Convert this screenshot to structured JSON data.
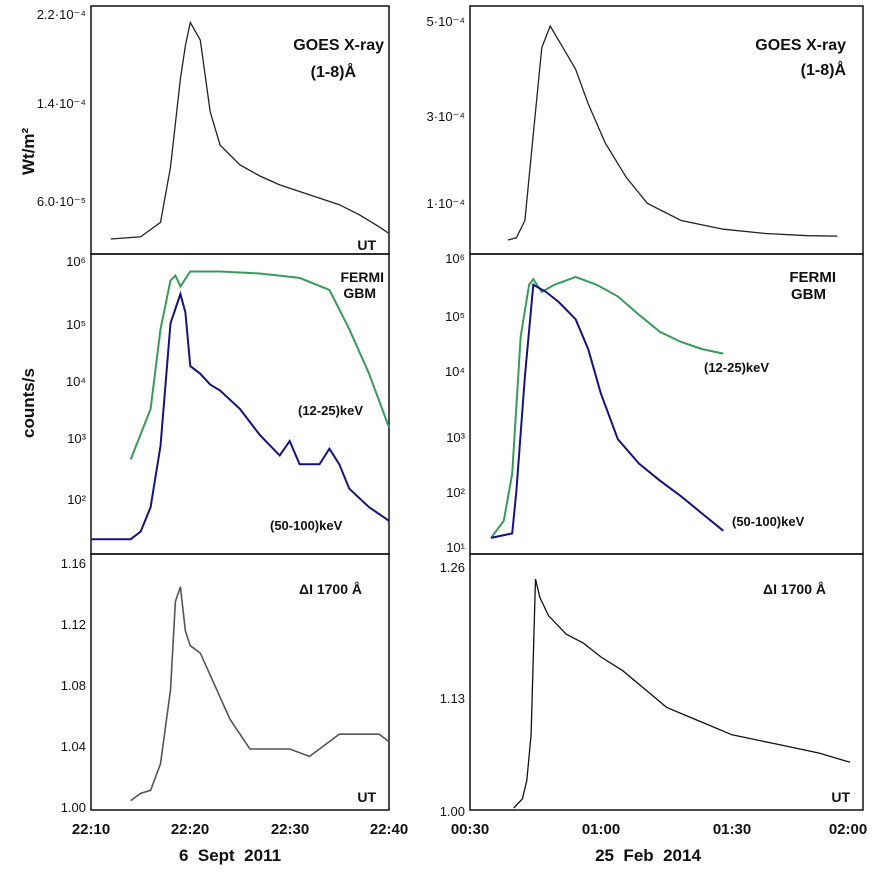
{
  "columns": [
    {
      "date_label": "6  Sept  2011",
      "x_ticks": [
        "22:10",
        "22:20",
        "22:30",
        "22:40"
      ],
      "goes": {
        "title_line1": "GOES X-ray",
        "title_line2": "(1-8)Å",
        "ut": "UT",
        "y_label": "Wt/m²",
        "y_ticks": [
          "2.2·10⁻⁴",
          "1.4·10⁻⁴",
          "6.0·10⁻⁵"
        ]
      },
      "fermi": {
        "title_line1": "FERMI",
        "title_line2": "GBM",
        "y_label": "counts/s",
        "y_ticks": [
          "10⁶",
          "10⁵",
          "10⁴",
          "10³",
          "10²"
        ],
        "label_12_25": "(12-25)keV",
        "label_50_100": "(50-100)keV"
      },
      "aia": {
        "title": "ΔI 1700 Å",
        "ut": "UT",
        "y_ticks": [
          "1.16",
          "1.12",
          "1.08",
          "1.04",
          "1.00"
        ]
      }
    },
    {
      "date_label": "25  Feb  2014",
      "x_ticks": [
        "00:30",
        "01:00",
        "01:30",
        "02:00"
      ],
      "goes": {
        "title_line1": "GOES X-ray",
        "title_line2": "(1-8)Å",
        "y_ticks": [
          "5·10⁻⁴",
          "3·10⁻⁴",
          "1·10⁻⁴"
        ]
      },
      "fermi": {
        "title_line1": "FERMI",
        "title_line2": "GBM",
        "y_ticks": [
          "10⁶",
          "10⁵",
          "10⁴",
          "10³",
          "10²",
          "10¹"
        ],
        "label_12_25": "(12-25)keV",
        "label_50_100": "(50-100)keV"
      },
      "aia": {
        "title": "ΔI 1700 Å",
        "ut": "UT",
        "y_ticks": [
          "1.26",
          "1.13",
          "1.00"
        ]
      }
    }
  ],
  "chart_data": [
    {
      "type": "line",
      "title": "GOES X-ray (1-8)Å",
      "date": "6 Sept 2011",
      "ylabel": "Wt/m²",
      "xlim": [
        "22:10",
        "22:40"
      ],
      "ylim": [
        2.5e-05,
        0.000225
      ],
      "series": [
        {
          "name": "GOES X-ray (1-8)Å",
          "color": "#222222",
          "x": [
            "22:12",
            "22:15",
            "22:17",
            "22:18",
            "22:19",
            "22:19.5",
            "22:20",
            "22:21",
            "22:22",
            "22:23",
            "22:25",
            "22:27",
            "22:29",
            "22:31",
            "22:33",
            "22:35",
            "22:37",
            "22:39",
            "22:40"
          ],
          "values": [
            2.5e-05,
            2.7e-05,
            4e-05,
            9e-05,
            0.00017,
            0.0002,
            0.000221,
            0.000205,
            0.00014,
            0.00011,
            9.2e-05,
            8.2e-05,
            7.4e-05,
            6.8e-05,
            6.2e-05,
            5.6e-05,
            4.7e-05,
            3.6e-05,
            3e-05
          ]
        }
      ]
    },
    {
      "type": "line",
      "title": "FERMI GBM",
      "date": "6 Sept 2011",
      "ylabel": "counts/s",
      "yscale": "log",
      "xlim": [
        "22:10",
        "22:40"
      ],
      "ylim": [
        20,
        1000000
      ],
      "series": [
        {
          "name": "(12-25)keV",
          "color": "#3a9a5a",
          "x": [
            "22:14",
            "22:16",
            "22:17",
            "22:18",
            "22:18.5",
            "22:19",
            "22:20",
            "22:23",
            "22:27",
            "22:31",
            "22:34",
            "22:36",
            "22:38",
            "22:40"
          ],
          "values": [
            600,
            4000,
            80000,
            500000,
            600000,
            400000,
            700000,
            700000,
            650000,
            550000,
            350000,
            80000,
            15000,
            2000
          ]
        },
        {
          "name": "(50-100)keV",
          "color": "#14147a",
          "x": [
            "22:10",
            "22:12",
            "22:14",
            "22:15",
            "22:16",
            "22:17",
            "22:18",
            "22:19",
            "22:19.5",
            "22:20",
            "22:21",
            "22:22",
            "22:23",
            "22:25",
            "22:27",
            "22:29",
            "22:30",
            "22:31",
            "22:33",
            "22:34",
            "22:35",
            "22:36",
            "22:38",
            "22:40"
          ],
          "values": [
            30,
            30,
            30,
            40,
            100,
            1000,
            100000,
            300000,
            150000,
            20000,
            15000,
            10000,
            8000,
            4000,
            1500,
            700,
            1200,
            500,
            500,
            900,
            500,
            200,
            100,
            60
          ]
        }
      ]
    },
    {
      "type": "line",
      "title": "ΔI 1700 Å",
      "date": "6 Sept 2011",
      "xlim": [
        "22:10",
        "22:40"
      ],
      "ylim": [
        1.0,
        1.16
      ],
      "series": [
        {
          "name": "ΔI 1700 Å",
          "color": "#555555",
          "x": [
            "22:14",
            "22:15",
            "22:16",
            "22:17",
            "22:18",
            "22:18.5",
            "22:19",
            "22:19.5",
            "22:20",
            "22:21",
            "22:22",
            "22:24",
            "22:26",
            "22:28",
            "22:30",
            "22:32",
            "22:33",
            "22:35",
            "22:37",
            "22:39",
            "22:40"
          ],
          "values": [
            1.005,
            1.01,
            1.012,
            1.03,
            1.08,
            1.14,
            1.15,
            1.12,
            1.11,
            1.105,
            1.09,
            1.06,
            1.04,
            1.04,
            1.04,
            1.035,
            1.04,
            1.05,
            1.05,
            1.05,
            1.045
          ]
        }
      ]
    },
    {
      "type": "line",
      "title": "GOES X-ray (1-8)Å",
      "date": "25 Feb 2014",
      "xlim": [
        "00:30",
        "02:00"
      ],
      "ylim": [
        5e-06,
        0.0005
      ],
      "series": [
        {
          "name": "GOES X-ray (1-8)Å",
          "color": "#222222",
          "x": [
            "00:39",
            "00:41",
            "00:43",
            "00:45",
            "00:47",
            "00:49",
            "00:52",
            "00:55",
            "00:58",
            "01:02",
            "01:07",
            "01:12",
            "01:20",
            "01:30",
            "01:40",
            "01:50",
            "01:57"
          ],
          "values": [
            5e-06,
            1e-05,
            5e-05,
            0.00025,
            0.00045,
            0.0005,
            0.00045,
            0.0004,
            0.00032,
            0.00023,
            0.00015,
            9e-05,
            5e-05,
            3e-05,
            2e-05,
            1.5e-05,
            1.4e-05
          ]
        }
      ]
    },
    {
      "type": "line",
      "title": "FERMI GBM",
      "date": "25 Feb 2014",
      "yscale": "log",
      "xlim": [
        "00:30",
        "02:00"
      ],
      "ylim": [
        10,
        1000000
      ],
      "series": [
        {
          "name": "(12-25)keV",
          "color": "#3a9a5a",
          "x": [
            "00:35",
            "00:38",
            "00:40",
            "00:42",
            "00:44",
            "00:45",
            "00:47",
            "00:50",
            "00:55",
            "01:00",
            "01:05",
            "01:10",
            "01:15",
            "01:20",
            "01:25",
            "01:30"
          ],
          "values": [
            15,
            30,
            200,
            50000,
            400000,
            500000,
            300000,
            400000,
            550000,
            400000,
            250000,
            120000,
            60000,
            40000,
            30000,
            25000
          ]
        },
        {
          "name": "(50-100)keV",
          "color": "#14147a",
          "x": [
            "00:35",
            "00:40",
            "00:41",
            "00:43",
            "00:45",
            "00:48",
            "00:51",
            "00:55",
            "00:58",
            "01:01",
            "01:05",
            "01:10",
            "01:15",
            "01:20",
            "01:25",
            "01:30"
          ],
          "values": [
            15,
            18,
            100,
            10000,
            400000,
            300000,
            200000,
            100000,
            30000,
            5000,
            800,
            300,
            150,
            80,
            40,
            20
          ]
        }
      ]
    },
    {
      "type": "line",
      "title": "ΔI 1700 Å",
      "date": "25 Feb 2014",
      "xlim": [
        "00:30",
        "02:00"
      ],
      "ylim": [
        1.0,
        1.26
      ],
      "series": [
        {
          "name": "ΔI 1700 Å",
          "color": "#111111",
          "x": [
            "00:40",
            "00:42",
            "00:43",
            "00:44",
            "00:45",
            "00:46",
            "00:48",
            "00:52",
            "00:56",
            "01:00",
            "01:05",
            "01:10",
            "01:15",
            "01:20",
            "01:25",
            "01:30",
            "01:40",
            "01:50",
            "01:57"
          ],
          "values": [
            1.0,
            1.01,
            1.03,
            1.08,
            1.25,
            1.23,
            1.21,
            1.19,
            1.18,
            1.165,
            1.15,
            1.13,
            1.11,
            1.1,
            1.09,
            1.08,
            1.07,
            1.06,
            1.05
          ]
        }
      ]
    }
  ]
}
